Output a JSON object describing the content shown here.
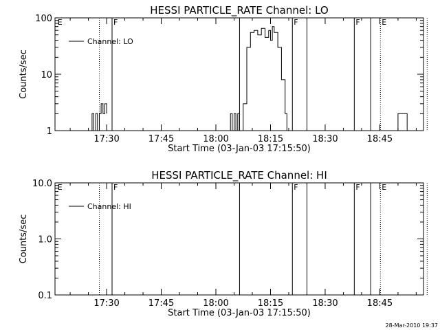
{
  "footer_timestamp": "28-Mar-2010 19:37",
  "chart_data": [
    {
      "type": "line",
      "title": "HESSI PARTICLE_RATE Channel: LO",
      "xlabel": "Start Time (03-Jan-03 17:15:50)",
      "ylabel": "Counts/sec",
      "yscale": "log",
      "xlim": [
        "17:15:50",
        "18:57:00"
      ],
      "ylim": [
        1,
        100
      ],
      "x_ticks": [
        "17:30",
        "17:45",
        "18:00",
        "18:15",
        "18:30",
        "18:45"
      ],
      "y_ticks": [
        "1",
        "10",
        "100"
      ],
      "legend": [
        "Channel: LO"
      ],
      "markers": [
        {
          "time": "17:16:10",
          "label": "E",
          "style": "none"
        },
        {
          "time": "17:28:00",
          "label": "",
          "style": "dotted"
        },
        {
          "time": "17:31:30",
          "label": "F",
          "style": "solid"
        },
        {
          "time": "18:06:30",
          "label": "",
          "style": "solid"
        },
        {
          "time": "18:21:00",
          "label": "F",
          "style": "solid"
        },
        {
          "time": "18:25:00",
          "label": "",
          "style": "solid"
        },
        {
          "time": "18:38:00",
          "label": "F",
          "style": "solid"
        },
        {
          "time": "18:42:30",
          "label": "",
          "style": "solid"
        },
        {
          "time": "18:45:10",
          "label": "E",
          "style": "dotted"
        },
        {
          "time": "18:58:00",
          "label": "",
          "style": "dotted"
        }
      ],
      "series": [
        {
          "name": "Channel: LO",
          "segments": [
            {
              "x": [
                "17:25:30",
                "17:26:00",
                "17:26:30",
                "17:27:00",
                "17:27:30",
                "17:28:00",
                "17:28:30",
                "17:29:00",
                "17:29:30",
                "17:30:00"
              ],
              "y": [
                1,
                2,
                1,
                2,
                1,
                2,
                3,
                2,
                3,
                2
              ]
            },
            {
              "x": [
                "18:03:30",
                "18:04:00",
                "18:04:30",
                "18:05:00",
                "18:05:30",
                "18:06:00",
                "18:06:30",
                "18:07:30",
                "18:08:30",
                "18:09:30",
                "18:10:30",
                "18:11:30",
                "18:12:30",
                "18:13:30",
                "18:14:30",
                "18:15:00",
                "18:15:30",
                "18:16:00",
                "18:17:00",
                "18:18:00",
                "18:19:00",
                "18:19:30"
              ],
              "y": [
                1,
                2,
                1,
                2,
                1,
                2,
                1,
                3,
                30,
                55,
                60,
                50,
                65,
                45,
                60,
                40,
                70,
                55,
                30,
                8,
                2,
                1
              ]
            },
            {
              "x": [
                "18:49:30",
                "18:50:00",
                "18:52:00",
                "18:52:30"
              ],
              "y": [
                1,
                2,
                2,
                1
              ]
            }
          ]
        }
      ]
    },
    {
      "type": "line",
      "title": "HESSI PARTICLE_RATE Channel: HI",
      "xlabel": "Start Time (03-Jan-03 17:15:50)",
      "ylabel": "Counts/sec",
      "yscale": "log",
      "xlim": [
        "17:15:50",
        "18:57:00"
      ],
      "ylim": [
        0.1,
        10
      ],
      "x_ticks": [
        "17:30",
        "17:45",
        "18:00",
        "18:15",
        "18:30",
        "18:45"
      ],
      "y_ticks": [
        "0.1",
        "1.0",
        "10.0"
      ],
      "legend": [
        "Channel: HI"
      ],
      "markers": [
        {
          "time": "17:16:10",
          "label": "E",
          "style": "none"
        },
        {
          "time": "17:28:00",
          "label": "",
          "style": "dotted"
        },
        {
          "time": "17:31:30",
          "label": "F",
          "style": "solid"
        },
        {
          "time": "18:06:30",
          "label": "",
          "style": "solid"
        },
        {
          "time": "18:21:00",
          "label": "F",
          "style": "solid"
        },
        {
          "time": "18:25:00",
          "label": "",
          "style": "solid"
        },
        {
          "time": "18:38:00",
          "label": "F",
          "style": "solid"
        },
        {
          "time": "18:42:30",
          "label": "",
          "style": "solid"
        },
        {
          "time": "18:45:10",
          "label": "E",
          "style": "dotted"
        },
        {
          "time": "18:58:00",
          "label": "",
          "style": "dotted"
        }
      ],
      "series": [
        {
          "name": "Channel: HI",
          "segments": []
        }
      ]
    }
  ]
}
